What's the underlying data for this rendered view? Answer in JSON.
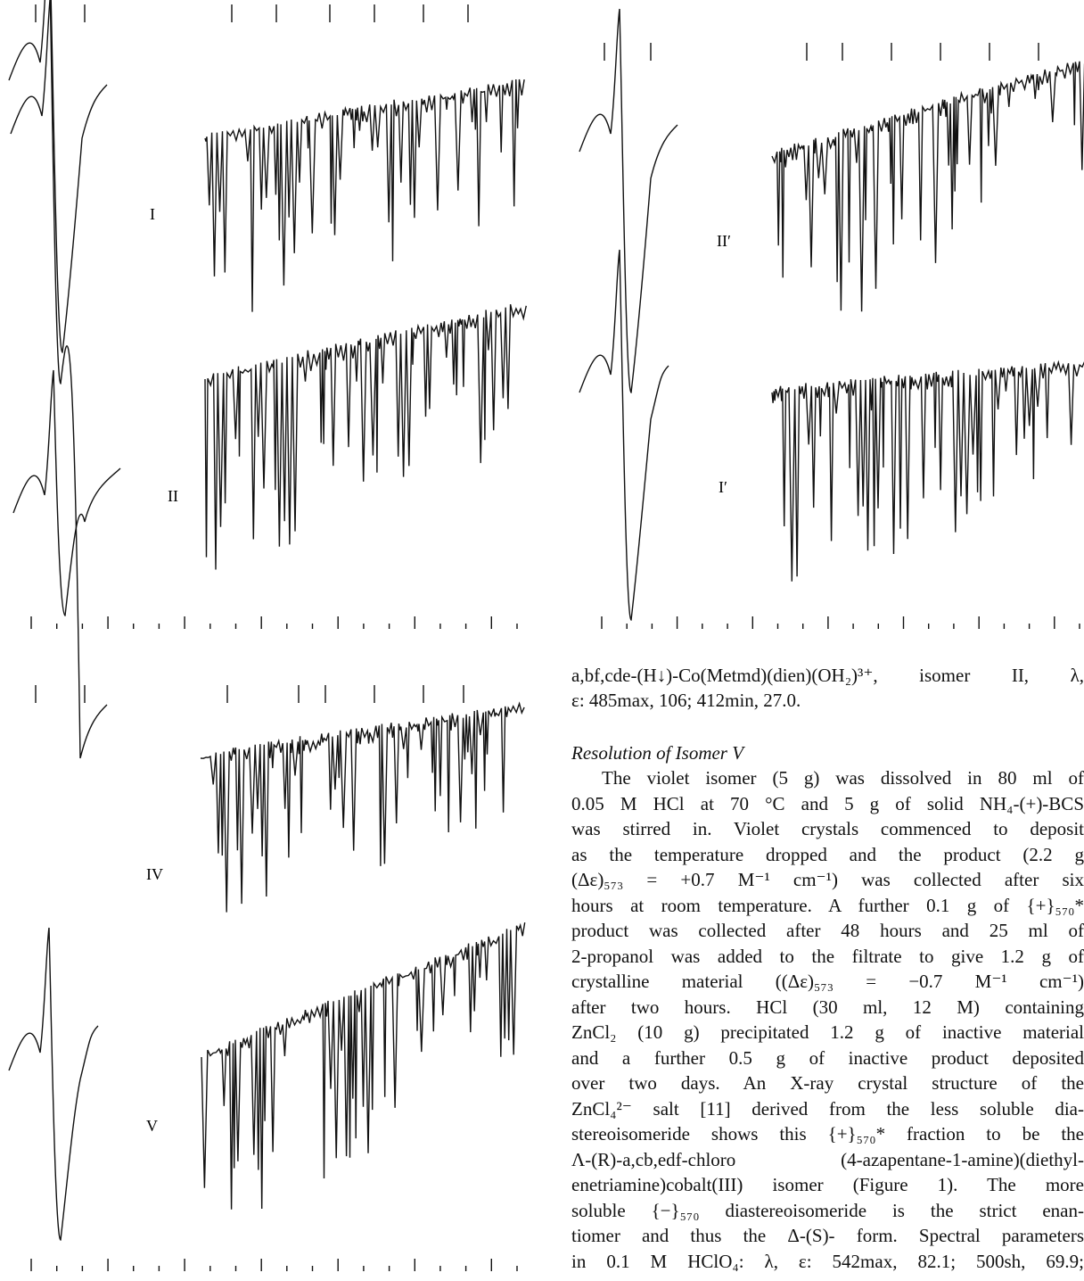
{
  "figures": {
    "labels": [
      "I",
      "II",
      "II′",
      "I′",
      "IV",
      "V"
    ]
  },
  "text": {
    "caption": [
      "a,bf,cde-(H↓)-Co(Metmd)(dien)(OH₂)³⁺, isomer II, λ,",
      "ε: 485max, 106; 412min, 27.0."
    ],
    "heading": "Resolution of Isomer V",
    "paragraph": [
      "The violet isomer (5 g) was dissolved in 80 ml of",
      "0.05 M HCl at 70 °C and 5 g of solid NH₄-(+)-BCS",
      "was stirred in. Violet crystals commenced to deposit",
      "as the temperature dropped and the product (2.2 g",
      "(Δε)₅₇₃ = +0.7 M⁻¹ cm⁻¹) was collected after six",
      "hours at room temperature. A further 0.1 g of {+}₅₇₀*",
      "product was collected after 48 hours and 25 ml of",
      "2-propanol was added to the filtrate to give 1.2 g of",
      "crystalline material ((Δε)₅₇₃ = −0.7 M⁻¹ cm⁻¹)",
      "after two hours. HCl (30 ml, 12 M) containing",
      "ZnCl₂ (10 g) precipitated 1.2 g of inactive material",
      "and a further 0.5 g of inactive product deposited",
      "over two days. An X-ray crystal structure of the",
      "ZnCl₄²⁻ salt [11] derived from the less soluble dia-",
      "stereoisomeride shows this {+}₅₇₀* fraction to be the",
      "Λ-(R)-a,cb,edf-chloro (4-azapentane-1-amine)(diethyl-",
      "enetriamine)cobalt(III) isomer (Figure 1). The more",
      "soluble {−}₅₇₀ diastereoisomeride is the strict enan-",
      "tiomer and thus the Δ-(S)- form. Spectral parameters",
      "in 0.1 M HClO₄: λ, ε: 542max, 82.1; 500sh, 69.9;"
    ]
  }
}
